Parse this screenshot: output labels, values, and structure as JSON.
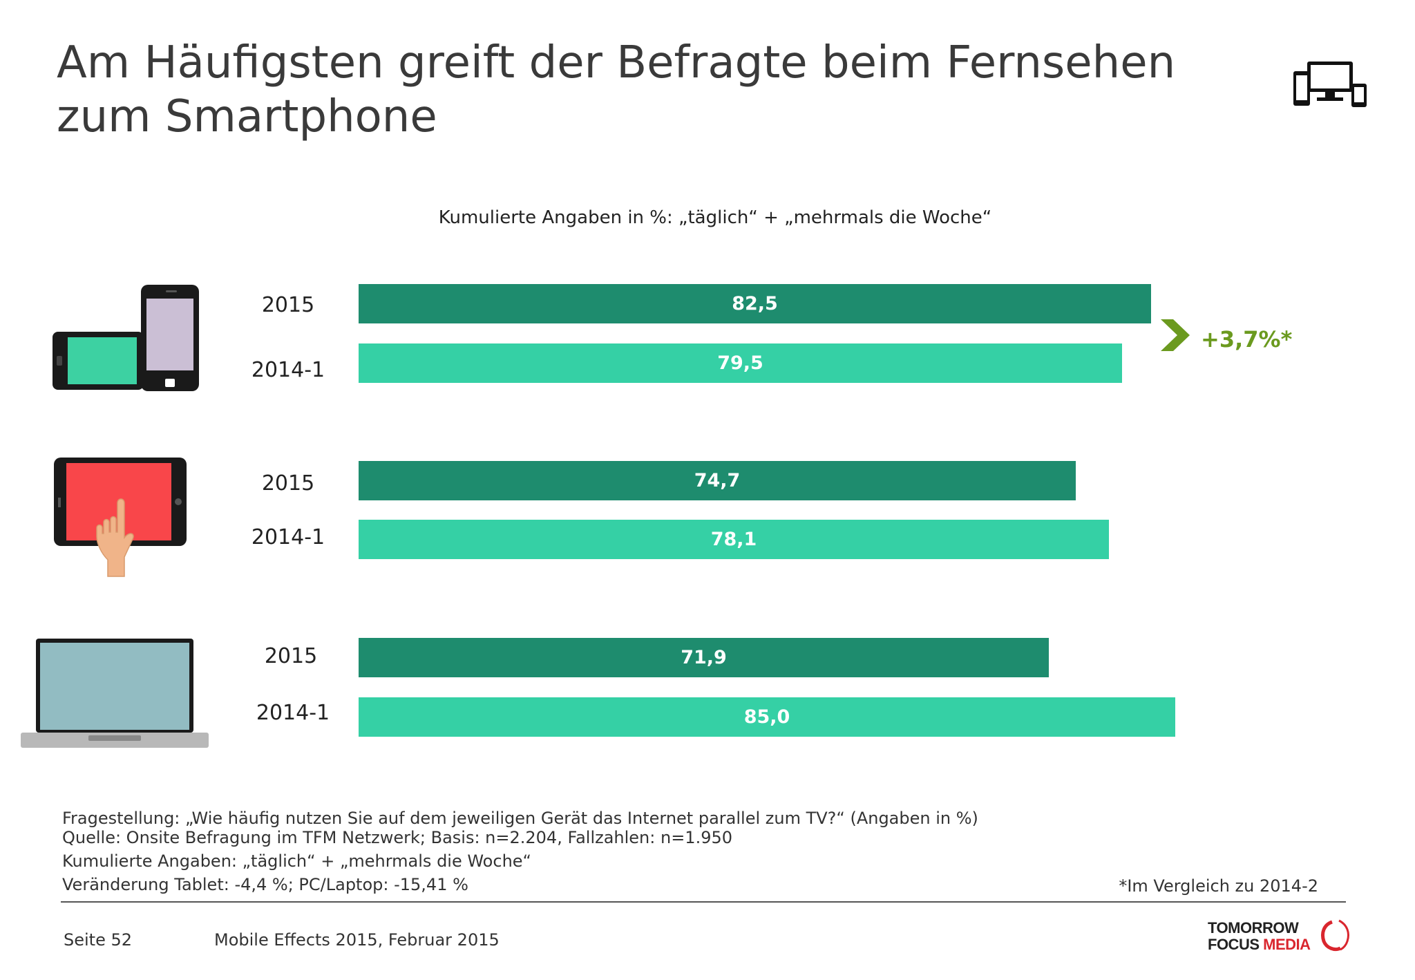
{
  "page": {
    "title": "Am Häufigsten greift der Befragte beim Fernsehen zum Smartphone"
  },
  "chart_data": {
    "type": "bar",
    "orientation": "horizontal",
    "subtitle": "Kumulierte Angaben in %: „täglich“ + „mehrmals die Woche“",
    "xlim": [
      0,
      100
    ],
    "series_colors": {
      "2015": "#1e8c6e",
      "2014-1": "#35d0a5"
    },
    "groups": [
      {
        "device": "smartphone",
        "bars": [
          {
            "label": "2015",
            "value": 82.5,
            "display": "82,5"
          },
          {
            "label": "2014-1",
            "value": 79.5,
            "display": "79,5"
          }
        ]
      },
      {
        "device": "tablet",
        "bars": [
          {
            "label": "2015",
            "value": 74.7,
            "display": "74,7"
          },
          {
            "label": "2014-1",
            "value": 78.1,
            "display": "78,1"
          }
        ]
      },
      {
        "device": "laptop",
        "bars": [
          {
            "label": "2015",
            "value": 71.9,
            "display": "71,9"
          },
          {
            "label": "2014-1",
            "value": 85.0,
            "display": "85,0"
          }
        ]
      }
    ],
    "annotation": {
      "text": "+3,7%*",
      "color": "#6b9a1f"
    }
  },
  "footer": {
    "question": "Fragestellung: „Wie häufig nutzen Sie auf dem jeweiligen Gerät das Internet parallel zum TV?“ (Angaben in %)",
    "source": "Quelle: Onsite Befragung im TFM Netzwerk; Basis: n=2.204, Fallzahlen: n=1.950",
    "cumulative": "Kumulierte Angaben: „täglich“ + „mehrmals die Woche“",
    "change": "Veränderung Tablet: -4,4 %; PC/Laptop: -15,41 %",
    "footnote": "*Im Vergleich zu 2014-2",
    "page_number": "Seite 52",
    "edition": "Mobile Effects 2015, Februar 2015"
  },
  "logo": {
    "line1": "TOMORROW",
    "line2_a": "FOCUS",
    "line2_b": "MEDIA"
  },
  "icons": {
    "header": "devices-icon",
    "arrow": "chevron-right-icon"
  }
}
